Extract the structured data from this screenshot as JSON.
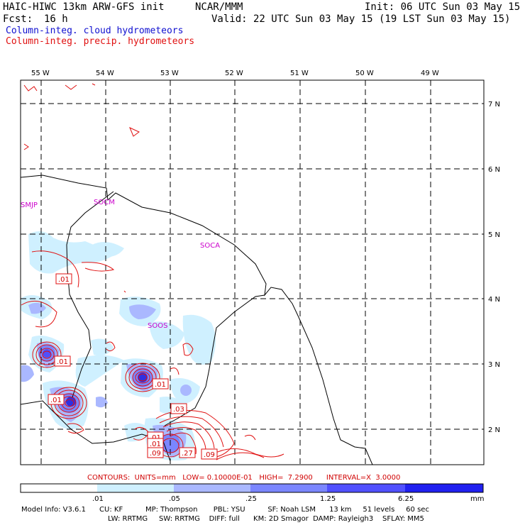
{
  "header": {
    "model_title": "HAIC-HIWC 13km ARW-GFS init",
    "org": "NCAR/MMM",
    "init": "Init: 06 UTC Sun 03 May 15",
    "fcst_label": "Fcst:",
    "fcst_value": "16 h",
    "valid": "Valid: 22 UTC Sun 03 May 15 (19 LST Sun 03 May 15)",
    "field1": "Column-integ. cloud hydrometeors",
    "field2": "Column-integ. precip. hydrometeors"
  },
  "colors": {
    "field1": "#1010d0",
    "field2": "#e01010",
    "station": "#cc00cc",
    "contour_text": "#d00000"
  },
  "map": {
    "lon_labels": [
      "55 W",
      "54 W",
      "53 W",
      "52 W",
      "51 W",
      "50 W",
      "49 W"
    ],
    "lat_labels": [
      "7 N",
      "6 N",
      "5 N",
      "4 N",
      "3 N",
      "2 N"
    ],
    "stations": [
      "SMJP",
      "SOCM",
      "SOCA",
      "SOOS"
    ],
    "contour_labels": [
      ".01",
      ".01",
      ".01",
      ".01",
      ".01",
      ".03",
      ".01",
      ".09",
      ".27",
      ".09"
    ]
  },
  "contours_line": "CONTOURS:  UNITS=mm   LOW= 0.10000E-01   HIGH=  7.2900      INTERVAL=X  3.0000",
  "colorbar": {
    "ticks": [
      ".01",
      ".05",
      ".25",
      "1.25",
      "6.25"
    ],
    "units": "mm",
    "colors": [
      "#ffffff",
      "#cff0ff",
      "#aab8ff",
      "#7a86ff",
      "#5050ff",
      "#2020f0"
    ]
  },
  "model_info": {
    "line1": "Model Info: V3.6.1      CU: KF          MP: Thompson       PBL: YSU          SF: Noah LSM      13 km     51 levels     60 sec",
    "line2": "LW: RRTMG     SW: RRTMG    DIFF: full      KM: 2D Smagor  DAMP: Rayleigh3    SFLAY: MM5"
  }
}
